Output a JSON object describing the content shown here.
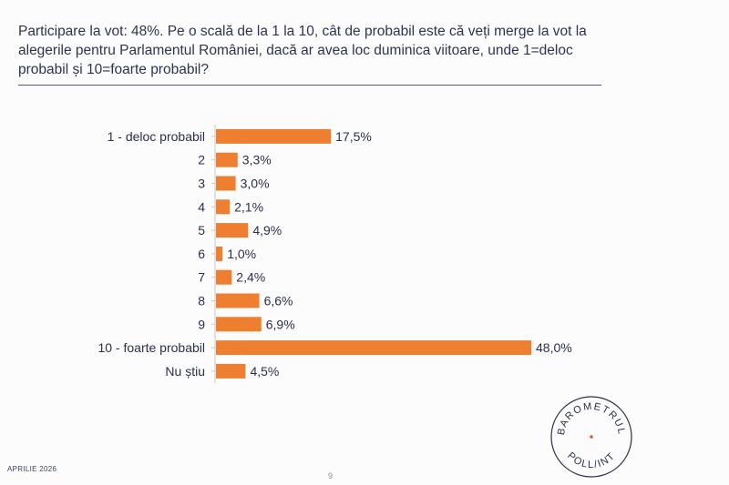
{
  "question": "Participare la vot: 48%. Pe o scală de la 1 la 10, cât de probabil este că veți merge la vot la alegerile pentru Parlamentul României, dacă ar avea loc duminica viitoare, unde 1=deloc probabil și 10=foarte probabil?",
  "chart_data": {
    "type": "bar",
    "orientation": "horizontal",
    "title": "",
    "xlabel": "",
    "ylabel": "",
    "categories": [
      "1 - deloc probabil",
      "2",
      "3",
      "4",
      "5",
      "6",
      "7",
      "8",
      "9",
      "10 - foarte probabil",
      "Nu știu"
    ],
    "values": [
      17.5,
      3.3,
      3.0,
      2.1,
      4.9,
      1.0,
      2.4,
      6.6,
      6.9,
      48.0,
      4.5
    ],
    "value_labels": [
      "17,5%",
      "3,3%",
      "3,0%",
      "2,1%",
      "4,9%",
      "1,0%",
      "2,4%",
      "6,6%",
      "6,9%",
      "48,0%",
      "4,5%"
    ],
    "xlim": [
      0,
      48
    ],
    "grid": false,
    "colors": {
      "bar": "#ee7f30",
      "axis": "#c8c8c8"
    }
  },
  "footer": {
    "date": "APRILIE 2026",
    "page_number": "9"
  },
  "logo": {
    "top_text": "BAROMETRUL",
    "bottom_text": "POLL/INT",
    "dot_color": "#e2562a"
  }
}
